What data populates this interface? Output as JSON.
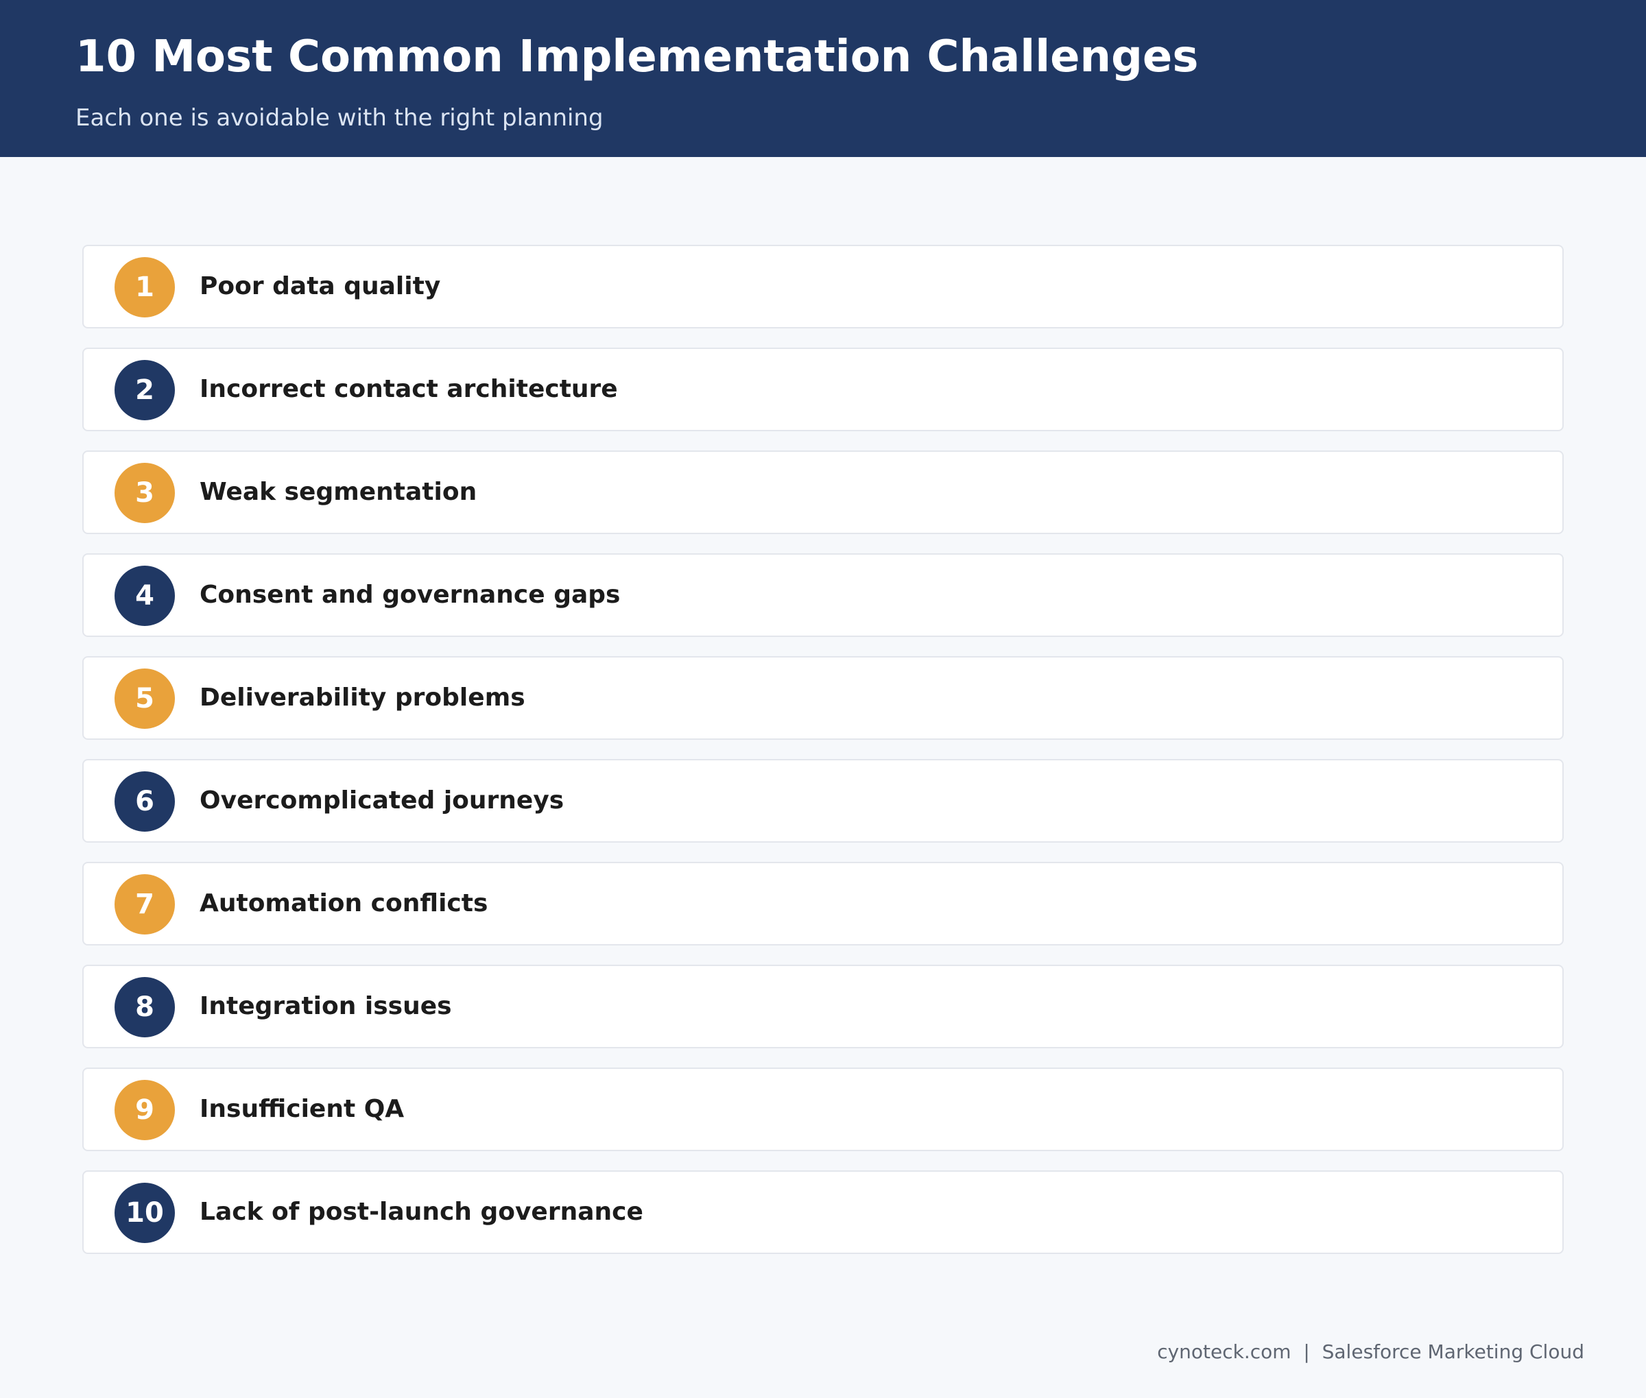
{
  "header": {
    "title": "10 Most Common Implementation Challenges",
    "subtitle": "Each one is avoidable with the right planning"
  },
  "colors": {
    "header_background": "#203864",
    "odd_badge": "#e9a23b",
    "even_badge": "#203864",
    "page_background": "#f6f8fb"
  },
  "challenges": [
    {
      "number": "1",
      "label": "Poor data quality"
    },
    {
      "number": "2",
      "label": "Incorrect contact architecture"
    },
    {
      "number": "3",
      "label": "Weak segmentation"
    },
    {
      "number": "4",
      "label": "Consent and governance gaps"
    },
    {
      "number": "5",
      "label": "Deliverability problems"
    },
    {
      "number": "6",
      "label": "Overcomplicated journeys"
    },
    {
      "number": "7",
      "label": "Automation conflicts"
    },
    {
      "number": "8",
      "label": "Integration issues"
    },
    {
      "number": "9",
      "label": "Insufficient QA"
    },
    {
      "number": "10",
      "label": "Lack of post-launch governance"
    }
  ],
  "footer": {
    "site": "cynoteck.com",
    "separator": "|",
    "product": "Salesforce Marketing Cloud"
  }
}
